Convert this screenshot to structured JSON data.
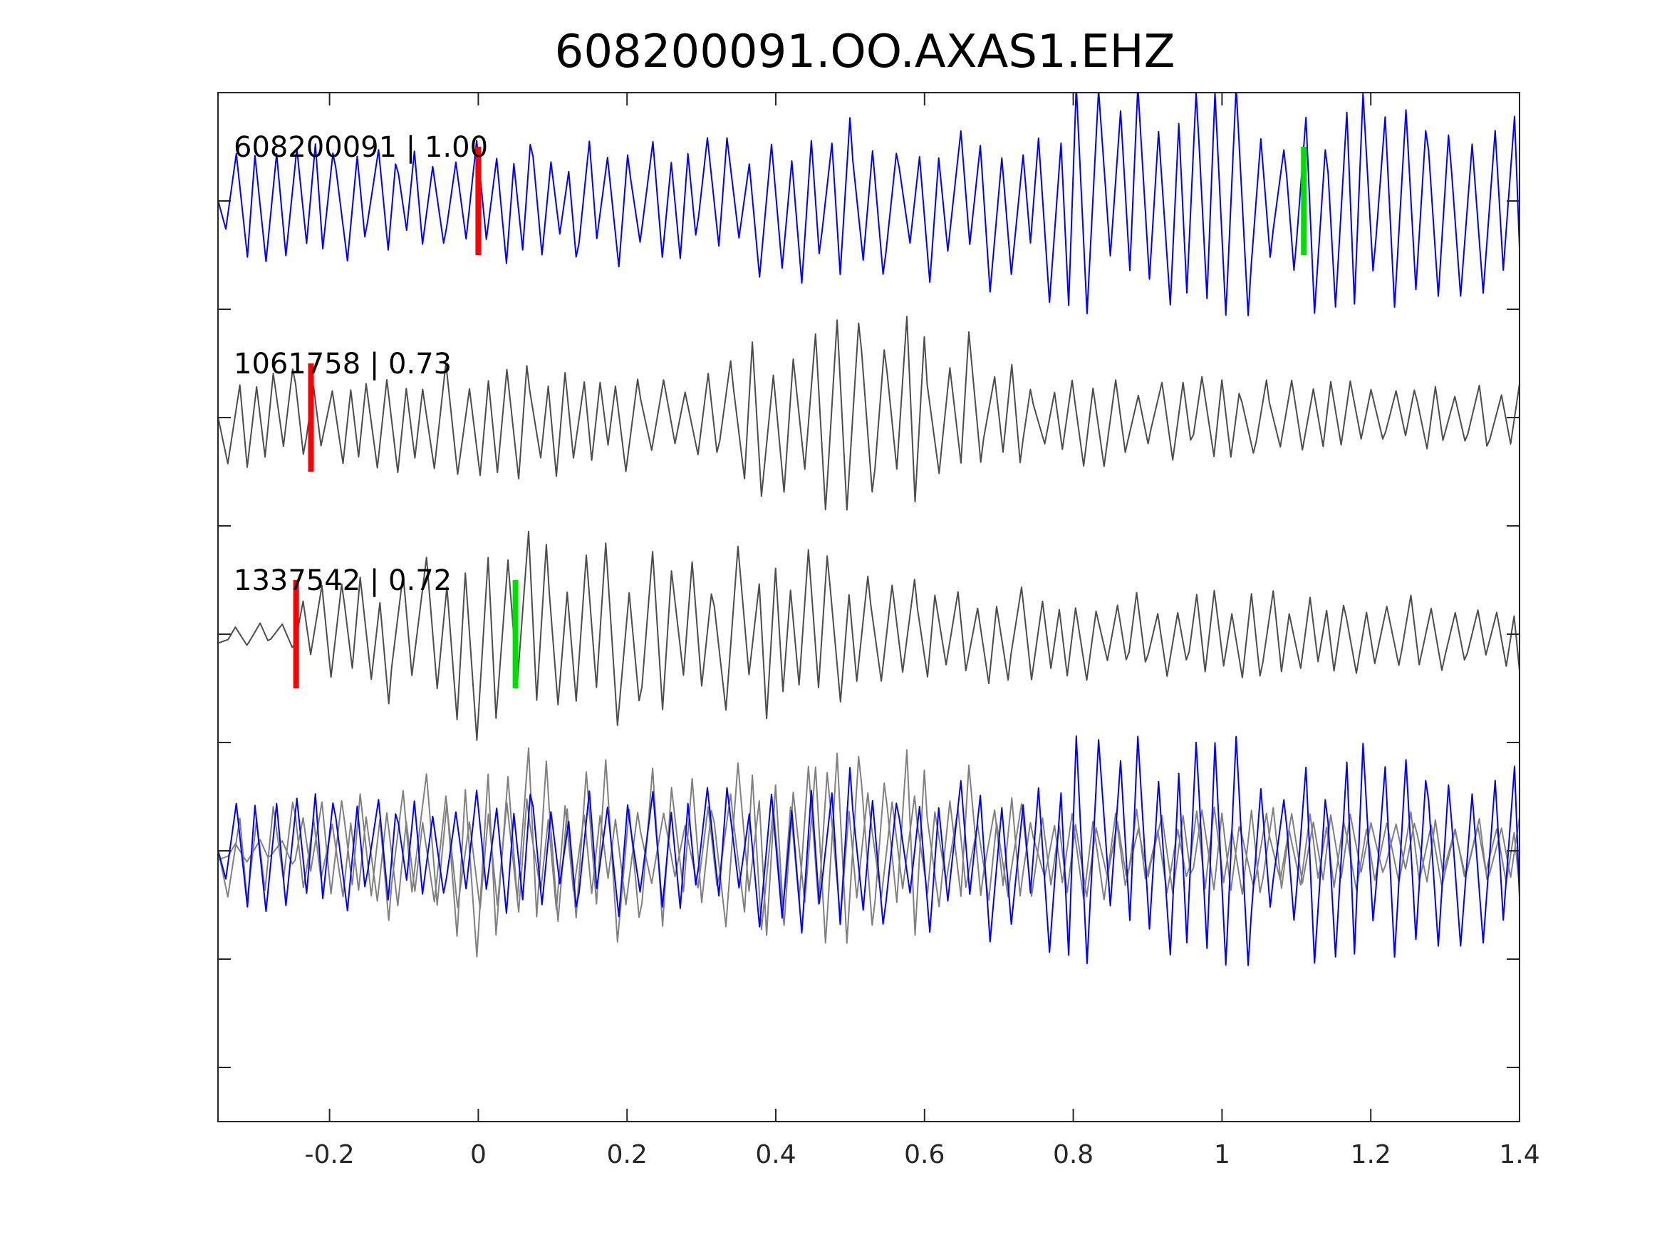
{
  "chart_data": {
    "type": "line",
    "title": "608200091.OO.AXAS1.EHZ",
    "xlabel": "",
    "ylabel": "",
    "xlim": [
      -0.35,
      1.4
    ],
    "x_ticks": [
      -0.2,
      0,
      0.2,
      0.4,
      0.6,
      0.8,
      1.0,
      1.2,
      1.4
    ],
    "x_tick_labels": [
      "-0.2",
      "0",
      "0.2",
      "0.4",
      "0.6",
      "0.8",
      "1",
      "1.2",
      "1.4"
    ],
    "y_ticks": [
      -1,
      0,
      1,
      2,
      3,
      4,
      5,
      6,
      7,
      8
    ],
    "ylim": [
      -1.5,
      8
    ],
    "grid": false,
    "colors": {
      "template": "#0000ff",
      "match": "#4d4d4d",
      "overlay_match": "#808080",
      "p_pick": "#ff0000",
      "s_pick": "#00dd00",
      "frame": "#262626"
    },
    "series": [
      {
        "label": "608200091 | 1.00",
        "baseline": 7,
        "color": "#0000ff",
        "p_pick": 0.0,
        "s_pick": 1.11,
        "seed": 91,
        "amp_profile": [
          [
            -0.35,
            0.55
          ],
          [
            0.3,
            0.6
          ],
          [
            0.45,
            0.8
          ],
          [
            0.75,
            0.8
          ],
          [
            0.8,
            1.05
          ],
          [
            1.2,
            1.0
          ],
          [
            1.4,
            0.8
          ]
        ],
        "period": 0.026
      },
      {
        "label": "1061758 | 0.73",
        "baseline": 5,
        "color": "#4d4d4d",
        "p_pick": -0.225,
        "s_pick": null,
        "seed": 58,
        "amp_profile": [
          [
            -0.35,
            0.45
          ],
          [
            0.05,
            0.55
          ],
          [
            0.25,
            0.45
          ],
          [
            0.38,
            0.75
          ],
          [
            0.5,
            1.05
          ],
          [
            0.65,
            0.9
          ],
          [
            0.72,
            0.5
          ],
          [
            1.0,
            0.35
          ],
          [
            1.4,
            0.3
          ]
        ],
        "period": 0.026
      },
      {
        "label": "1337542 | 0.72",
        "baseline": 3,
        "color": "#4d4d4d",
        "p_pick": -0.245,
        "s_pick": 0.05,
        "seed": 42,
        "amp_profile": [
          [
            -0.35,
            0.08
          ],
          [
            -0.26,
            0.12
          ],
          [
            -0.22,
            0.45
          ],
          [
            -0.05,
            0.8
          ],
          [
            0.0,
            1.05
          ],
          [
            0.1,
            0.85
          ],
          [
            0.45,
            0.75
          ],
          [
            0.65,
            0.45
          ],
          [
            0.85,
            0.4
          ],
          [
            1.4,
            0.35
          ]
        ],
        "period": 0.026
      }
    ],
    "overlay": {
      "baseline": 1,
      "components": [
        "1061758",
        "1337542",
        "608200091"
      ]
    }
  }
}
